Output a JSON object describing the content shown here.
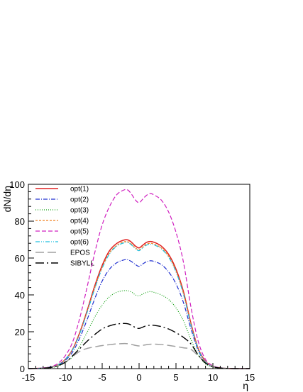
{
  "chart_data": {
    "type": "line",
    "xlabel": "η",
    "ylabel": "dN/dη",
    "xlim": [
      -15,
      15
    ],
    "ylim": [
      0,
      100
    ],
    "xticks": [
      -15,
      -10,
      -5,
      0,
      5,
      10,
      15
    ],
    "yticks": [
      0,
      20,
      40,
      60,
      80,
      100
    ],
    "grid": false,
    "legend_position": "top-left",
    "x": [
      -15,
      -14,
      -13,
      -12,
      -11,
      -10,
      -9,
      -8,
      -7,
      -6,
      -5,
      -4,
      -3,
      -2,
      -1.5,
      -1,
      -0.5,
      0,
      0.5,
      1,
      1.5,
      2,
      3,
      4,
      5,
      6,
      7,
      8,
      9,
      10,
      11,
      12,
      13,
      14,
      15
    ],
    "series": [
      {
        "name": "opt(1)",
        "color": "#e02020",
        "dash": "solid",
        "width": 1.5,
        "values": [
          0,
          0.1,
          0.3,
          0.8,
          2,
          5,
          10.5,
          20,
          32,
          45,
          56,
          64,
          68,
          69.8,
          69.8,
          68.5,
          66.5,
          65.5,
          67,
          68.5,
          69,
          68.6,
          66.5,
          62,
          54,
          42,
          25,
          11,
          4,
          1.2,
          0.4,
          0.1,
          0,
          0,
          0
        ]
      },
      {
        "name": "opt(2)",
        "color": "#2030d0",
        "dash": "dashdot",
        "width": 1.2,
        "values": [
          0,
          0.1,
          0.3,
          0.7,
          1.8,
          4.5,
          9,
          17,
          27,
          38,
          47.5,
          54,
          57.5,
          59,
          59,
          58,
          56.5,
          55.5,
          56.8,
          58,
          58.5,
          58.2,
          56.5,
          52.5,
          46,
          36,
          22,
          10,
          3.5,
          1.1,
          0.3,
          0.1,
          0,
          0,
          0
        ]
      },
      {
        "name": "opt(3)",
        "color": "#10a010",
        "dash": "dotted",
        "width": 1.2,
        "values": [
          0,
          0.1,
          0.2,
          0.5,
          1.3,
          3.3,
          6.5,
          12.5,
          20,
          28,
          34.5,
          39,
          41.5,
          42.3,
          42.2,
          41.5,
          40,
          39.5,
          40.5,
          41.3,
          41.8,
          41.4,
          40,
          37.5,
          33,
          26,
          16,
          7.5,
          2.6,
          0.8,
          0.2,
          0.1,
          0,
          0,
          0
        ]
      },
      {
        "name": "opt(4)",
        "color": "#f08020",
        "dash": "shortdash",
        "width": 1.2,
        "values": [
          0,
          0.1,
          0.3,
          0.8,
          2,
          5,
          10.3,
          19.5,
          31.5,
          44,
          55,
          62.8,
          67,
          68.8,
          68.8,
          67.5,
          65.5,
          64.5,
          66,
          67.5,
          68,
          67.6,
          65.5,
          61,
          53,
          41,
          24.5,
          10.8,
          3.9,
          1.2,
          0.4,
          0.1,
          0,
          0,
          0
        ]
      },
      {
        "name": "opt(5)",
        "color": "#d020c0",
        "dash": "dashed",
        "width": 1.2,
        "values": [
          0,
          0.1,
          0.4,
          1,
          2.8,
          7,
          14.5,
          28,
          45,
          63,
          78,
          88,
          94.5,
          97,
          96.8,
          94.5,
          91.5,
          90,
          92,
          94,
          95,
          94.3,
          91.5,
          85,
          74,
          58,
          34,
          15,
          5,
          1.6,
          0.5,
          0.1,
          0,
          0,
          0
        ]
      },
      {
        "name": "opt(6)",
        "color": "#20c0e0",
        "dash": "dashdotdot",
        "width": 1.2,
        "values": [
          0,
          0.1,
          0.3,
          0.8,
          2,
          5,
          10.2,
          19.3,
          31,
          43.5,
          54.5,
          62.3,
          66.5,
          68.3,
          68.3,
          67,
          65,
          64,
          65.5,
          67,
          67.5,
          67.2,
          65,
          60.5,
          52.5,
          40.5,
          24,
          10.6,
          3.8,
          1.2,
          0.4,
          0.1,
          0,
          0,
          0
        ]
      },
      {
        "name": "EPOS",
        "color": "#a0a0a0",
        "dash": "longdash",
        "width": 1.5,
        "values": [
          0,
          0.1,
          0.2,
          0.6,
          1.6,
          3.5,
          6.5,
          9.5,
          11,
          11.8,
          12.5,
          13,
          13.4,
          13.6,
          13.5,
          13.1,
          12.6,
          12.3,
          12.6,
          13,
          13.2,
          13.3,
          13.1,
          12.6,
          12,
          11.3,
          10.5,
          7,
          3.5,
          1.2,
          0.4,
          0.1,
          0,
          0,
          0
        ]
      },
      {
        "name": "SIBYLL",
        "color": "#000000",
        "dash": "longdashdot",
        "width": 1.4,
        "values": [
          0,
          0.1,
          0.2,
          0.6,
          1.6,
          3.5,
          7,
          11,
          15,
          18.5,
          21.5,
          23.2,
          24.2,
          24.5,
          24.3,
          23.5,
          22.3,
          21.8,
          22.5,
          23.3,
          23.5,
          23.5,
          22.8,
          21.5,
          19.5,
          17,
          13.5,
          7.5,
          3,
          1,
          0.3,
          0.1,
          0,
          0,
          0
        ]
      }
    ]
  }
}
